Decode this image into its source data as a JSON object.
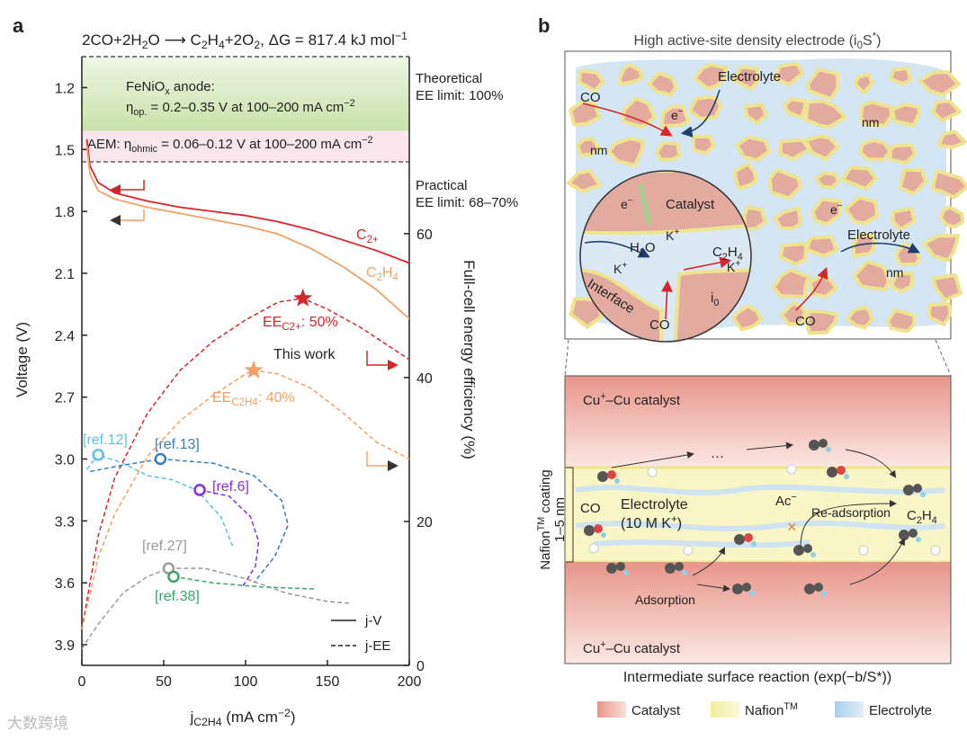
{
  "chart_data": {
    "type": "line",
    "panel": "a",
    "title": "2CO+2H_{2}O ⟶ C_{2}H_{4}+2O_{2}, ΔG = 817.4 kJ mol^{−1}",
    "xlabel": "j_{C2H4} (mA cm^{−2})",
    "ylabel": "Voltage (V)",
    "y2label": "Full-cell energy efficiency (%)",
    "xlim": [
      0,
      200
    ],
    "xticks": [
      0,
      50,
      100,
      150,
      200
    ],
    "ylim": [
      4.0,
      1.05
    ],
    "yticks": [
      {
        "value": 1.2,
        "label": "1.2"
      },
      {
        "value": 1.5,
        "label": "1.5"
      },
      {
        "value": 1.8,
        "label": "1.8"
      },
      {
        "value": 2.1,
        "label": "2.1"
      },
      {
        "value": 2.4,
        "label": "2.4"
      },
      {
        "value": 2.7,
        "label": "2.7"
      },
      {
        "value": 3.0,
        "label": "3.0"
      },
      {
        "value": 3.3,
        "label": "3.3"
      },
      {
        "value": 3.6,
        "label": "3.6"
      },
      {
        "value": 3.9,
        "label": "3.9"
      }
    ],
    "y2lim": [
      0,
      84.6
    ],
    "y2ticks": [
      0,
      20,
      40,
      60
    ],
    "bands": [
      {
        "label": "FeNiO_{x} anode:",
        "text": "η_{op.} = 0.2–0.35 V at 100–200 mA cm^{−2}",
        "range": [
          1.05,
          1.41
        ],
        "color": "#d3e8b8"
      },
      {
        "label": "AEM: η_{ohmic} = 0.06–0.12 V at 100–200 mA cm^{−2}",
        "range": [
          1.41,
          1.56
        ],
        "color": "#f8e6ec"
      }
    ],
    "limits": [
      {
        "label": "Theoretical",
        "text": "EE limit: 100%",
        "value": 1.05
      },
      {
        "label": "Practical",
        "text": "EE limit: 68–70%",
        "value": 1.56
      }
    ],
    "series": [
      {
        "name": "C_{2+}",
        "color": "#d7262b",
        "style": "solid",
        "axis": "y",
        "x": [
          3,
          5,
          10,
          20,
          40,
          60,
          80,
          100,
          120,
          140,
          160,
          180,
          200
        ],
        "values": [
          1.45,
          1.58,
          1.66,
          1.71,
          1.75,
          1.78,
          1.8,
          1.82,
          1.85,
          1.89,
          1.94,
          1.99,
          2.05
        ]
      },
      {
        "name": "C_{2}H_{4}",
        "color": "#f0a266",
        "style": "solid",
        "axis": "y",
        "x": [
          3,
          5,
          10,
          20,
          40,
          60,
          80,
          100,
          120,
          140,
          160,
          180,
          200
        ],
        "values": [
          1.48,
          1.62,
          1.7,
          1.74,
          1.78,
          1.81,
          1.84,
          1.87,
          1.91,
          1.98,
          2.07,
          2.18,
          2.32
        ]
      },
      {
        "name": "EE_{C2+}: 50%",
        "color": "#d7262b",
        "style": "dashed",
        "axis": "y2",
        "x": [
          0,
          10,
          20,
          40,
          60,
          80,
          100,
          120,
          135,
          150,
          170,
          200
        ],
        "values": [
          5,
          18,
          26,
          35,
          41,
          45,
          48,
          50.5,
          51,
          49.5,
          47,
          42.5
        ],
        "star": {
          "x": 135,
          "y": 51
        }
      },
      {
        "name": "EE_{C2H4}: 40%",
        "color": "#f0a266",
        "style": "dashed",
        "axis": "y2",
        "x": [
          0,
          10,
          20,
          40,
          60,
          80,
          100,
          105,
          120,
          140,
          160,
          180,
          200
        ],
        "values": [
          5,
          15,
          21,
          29,
          34,
          37.5,
          40.5,
          41,
          40.5,
          38.5,
          35,
          31,
          28.7
        ],
        "star": {
          "x": 105,
          "y": 41
        }
      },
      {
        "name": "[ref.12]",
        "color": "#5ec0e8",
        "style": "dashed",
        "axis": "y",
        "x": [
          3,
          10,
          25,
          40,
          55,
          70,
          85,
          92
        ],
        "values": [
          3.05,
          2.98,
          3.02,
          3.08,
          3.1,
          3.15,
          3.28,
          3.42
        ],
        "point": {
          "x": 10,
          "y": 2.98
        }
      },
      {
        "name": "[ref.13]",
        "color": "#3a7db5",
        "style": "dashed",
        "axis": "y",
        "x": [
          5,
          25,
          48,
          80,
          105,
          122,
          126,
          118,
          105
        ],
        "values": [
          3.06,
          3.03,
          3.0,
          3.02,
          3.08,
          3.2,
          3.32,
          3.47,
          3.6
        ],
        "point": {
          "x": 48,
          "y": 3.0
        }
      },
      {
        "name": "[ref.6]",
        "color": "#8a2be2",
        "style": "dashed",
        "axis": "y",
        "x": [
          72,
          90,
          103,
          108,
          106,
          98
        ],
        "values": [
          3.15,
          3.18,
          3.28,
          3.4,
          3.52,
          3.62
        ],
        "point": {
          "x": 72,
          "y": 3.15
        }
      },
      {
        "name": "[ref.27]",
        "color": "#9a9a9a",
        "style": "dashed",
        "axis": "y",
        "x": [
          0,
          10,
          25,
          40,
          53,
          75,
          100,
          125,
          150,
          165
        ],
        "values": [
          3.92,
          3.8,
          3.65,
          3.57,
          3.53,
          3.53,
          3.58,
          3.65,
          3.69,
          3.7
        ],
        "point": {
          "x": 53,
          "y": 3.53
        }
      },
      {
        "name": "[ref.38]",
        "color": "#3aa56a",
        "style": "dashed",
        "axis": "y",
        "x": [
          56,
          80,
          110,
          143
        ],
        "values": [
          3.57,
          3.6,
          3.62,
          3.63
        ],
        "point": {
          "x": 56,
          "y": 3.57
        }
      }
    ],
    "annotation": "This work",
    "legend": [
      "j-V",
      "j-EE"
    ]
  },
  "diagram": {
    "panel": "b",
    "top": {
      "title": "High active-site density electrode (i_{0}S^{*})",
      "labels": [
        "CO",
        "Electrolyte",
        "e^{−}",
        "nm",
        "nm",
        "Catalyst",
        "e^{−}",
        "K^{+}",
        "H_{2}O",
        "C_{2}H_{4}",
        "K^{+}",
        "K^{+}",
        "Interface",
        "i_{0}",
        "CO",
        "e^{−}",
        "Electrolyte",
        "nm",
        "CO"
      ]
    },
    "bottom": {
      "catalyst_top": "Cu^{+}–Cu catalyst",
      "catalyst_bottom": "Cu^{+}–Cu catalyst",
      "coating": "Nafion^{TM} coating",
      "thickness": "1–5 nm",
      "labels": [
        "CO",
        "Electrolyte",
        "(10 M K^{+})",
        "Ac^{−}",
        "Re-adsorption",
        "C_{2}H_{4}",
        "Adsorption",
        "···"
      ],
      "caption": "Intermediate surface reaction (exp(−b/S*))"
    },
    "legend": [
      "Catalyst",
      "Nafion^{TM}",
      "Electrolyte"
    ]
  },
  "watermark": "大数跨境"
}
